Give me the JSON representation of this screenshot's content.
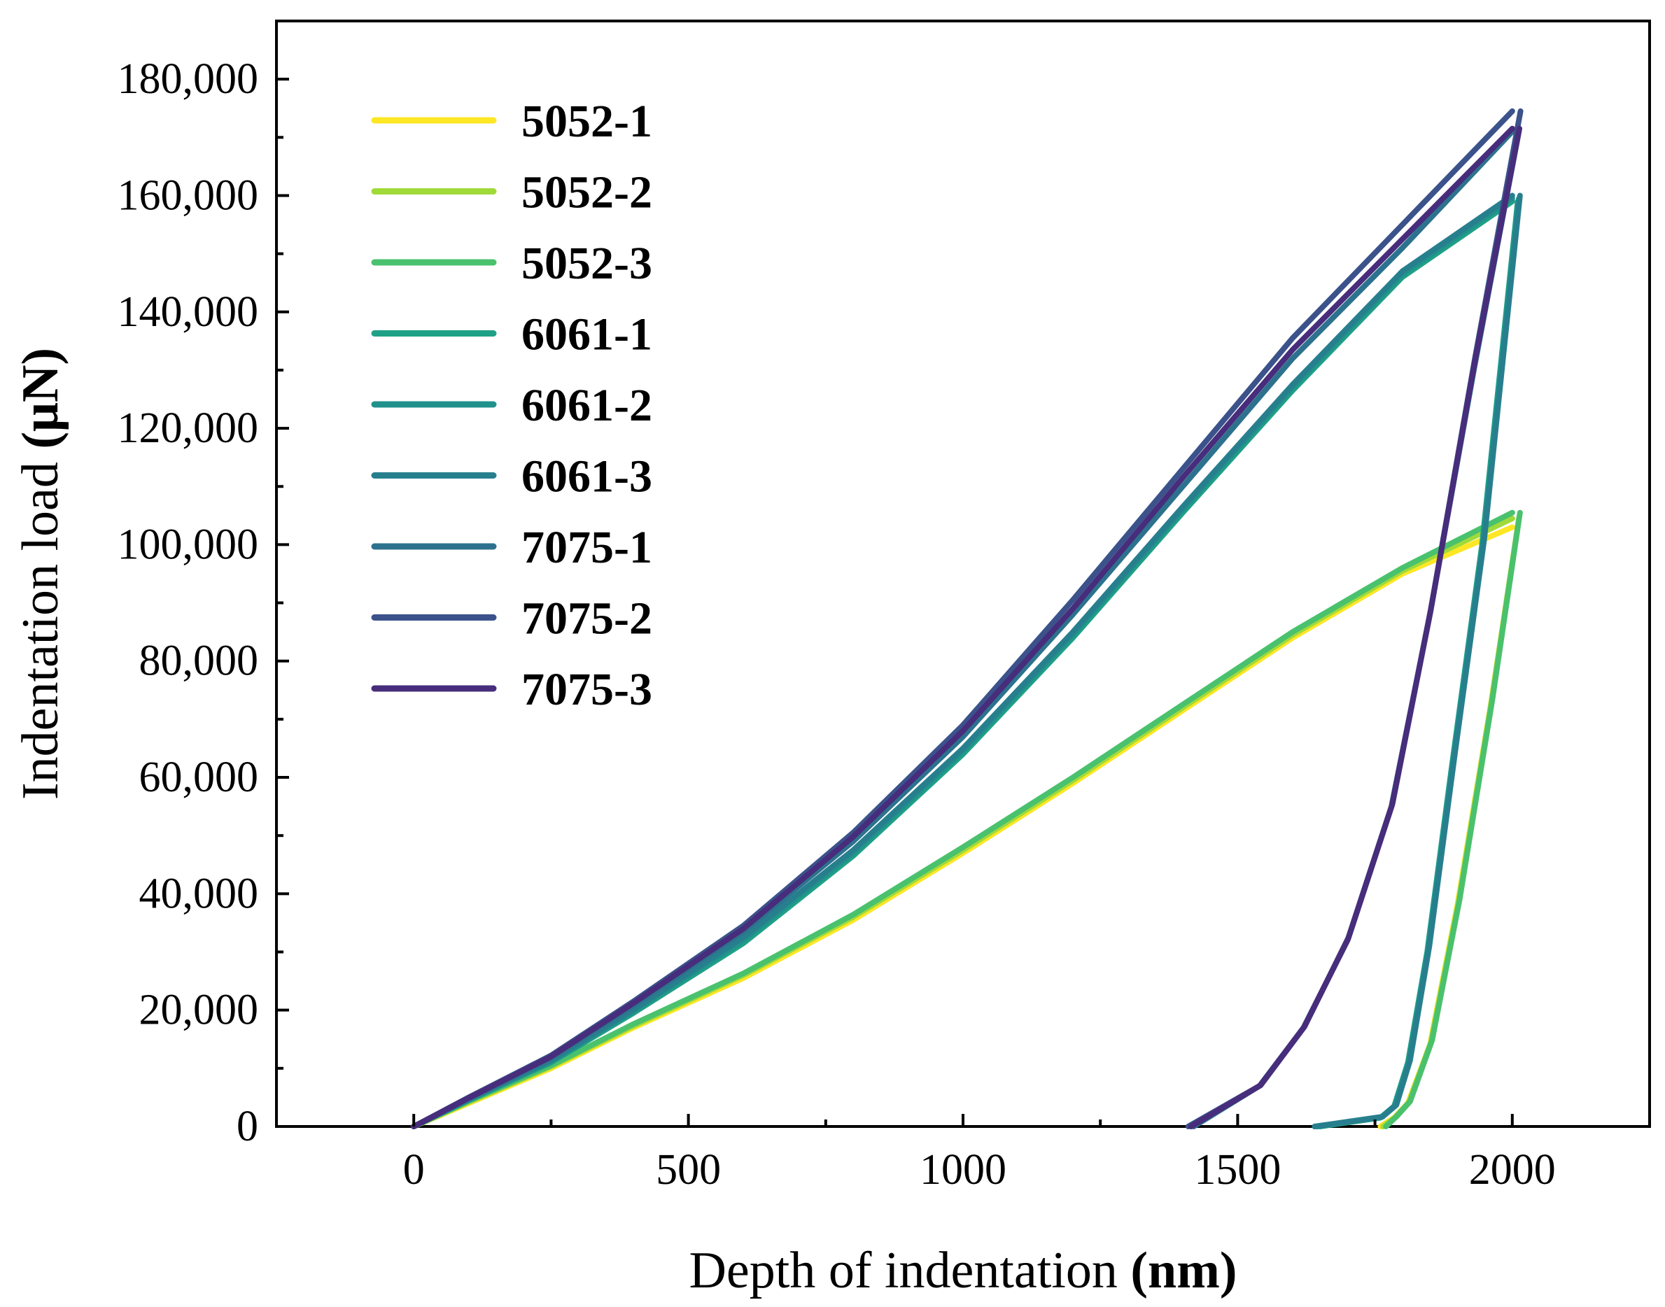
{
  "chart_data": {
    "type": "line",
    "xlabel": "Depth of indentation",
    "xlabel_unit": "(nm)",
    "ylabel": "Indentation load",
    "ylabel_unit": "(μN)",
    "xlim": [
      -250,
      2250
    ],
    "ylim": [
      0,
      190000
    ],
    "x_ticks": [
      0,
      500,
      1000,
      1500,
      2000
    ],
    "x_tick_labels": [
      "0",
      "500",
      "1000",
      "1500",
      "2000"
    ],
    "y_ticks": [
      0,
      20000,
      40000,
      60000,
      80000,
      100000,
      120000,
      140000,
      160000,
      180000
    ],
    "y_tick_labels": [
      "0",
      "20,000",
      "40,000",
      "60,000",
      "80,000",
      "100,000",
      "120,000",
      "140,000",
      "160,000",
      "180,000"
    ],
    "grid": false,
    "legend_position": "top-left",
    "series": [
      {
        "name": "5052-1",
        "color": "#fde725",
        "loading": [
          [
            0,
            0
          ],
          [
            100,
            4000
          ],
          [
            250,
            10000
          ],
          [
            400,
            17000
          ],
          [
            600,
            25500
          ],
          [
            800,
            35500
          ],
          [
            1000,
            47000
          ],
          [
            1200,
            59000
          ],
          [
            1400,
            71500
          ],
          [
            1600,
            84000
          ],
          [
            1800,
            95000
          ],
          [
            2000,
            103000
          ]
        ],
        "unloading": [
          [
            2010,
            103000
          ],
          [
            1960,
            72000
          ],
          [
            1900,
            38000
          ],
          [
            1850,
            14000
          ],
          [
            1810,
            4000
          ],
          [
            1785,
            1500
          ],
          [
            1760,
            0
          ]
        ]
      },
      {
        "name": "5052-2",
        "color": "#a0da39",
        "loading": [
          [
            0,
            0
          ],
          [
            100,
            4200
          ],
          [
            250,
            10300
          ],
          [
            400,
            17300
          ],
          [
            600,
            26000
          ],
          [
            800,
            36000
          ],
          [
            1000,
            47500
          ],
          [
            1200,
            59500
          ],
          [
            1400,
            72000
          ],
          [
            1600,
            84500
          ],
          [
            1800,
            95500
          ],
          [
            2000,
            104500
          ]
        ],
        "unloading": [
          [
            2012,
            104500
          ],
          [
            1962,
            73000
          ],
          [
            1902,
            38500
          ],
          [
            1852,
            14500
          ],
          [
            1812,
            4200
          ],
          [
            1787,
            1600
          ],
          [
            1765,
            0
          ]
        ]
      },
      {
        "name": "5052-3",
        "color": "#4ac16d",
        "loading": [
          [
            0,
            0
          ],
          [
            100,
            4400
          ],
          [
            250,
            10500
          ],
          [
            400,
            17600
          ],
          [
            600,
            26300
          ],
          [
            800,
            36400
          ],
          [
            1000,
            48000
          ],
          [
            1200,
            60000
          ],
          [
            1400,
            72500
          ],
          [
            1600,
            85000
          ],
          [
            1800,
            96000
          ],
          [
            2000,
            105500
          ]
        ],
        "unloading": [
          [
            2014,
            105500
          ],
          [
            1964,
            73500
          ],
          [
            1904,
            39000
          ],
          [
            1854,
            14800
          ],
          [
            1814,
            4300
          ],
          [
            1789,
            1700
          ],
          [
            1770,
            0
          ]
        ]
      },
      {
        "name": "6061-1",
        "color": "#1fa187",
        "loading": [
          [
            0,
            0
          ],
          [
            100,
            4500
          ],
          [
            250,
            11000
          ],
          [
            400,
            19500
          ],
          [
            600,
            31500
          ],
          [
            800,
            46500
          ],
          [
            1000,
            64000
          ],
          [
            1200,
            84000
          ],
          [
            1400,
            105500
          ],
          [
            1600,
            126500
          ],
          [
            1800,
            146000
          ],
          [
            2000,
            159000
          ]
        ],
        "unloading": [
          [
            2010,
            159000
          ],
          [
            1945,
            100000
          ],
          [
            1890,
            62000
          ],
          [
            1845,
            30000
          ],
          [
            1810,
            11000
          ],
          [
            1785,
            3500
          ],
          [
            1760,
            1500
          ],
          [
            1650,
            0
          ]
        ]
      },
      {
        "name": "6061-2",
        "color": "#21918c",
        "loading": [
          [
            0,
            0
          ],
          [
            100,
            4600
          ],
          [
            250,
            11200
          ],
          [
            400,
            19800
          ],
          [
            600,
            32000
          ],
          [
            800,
            47000
          ],
          [
            1000,
            64500
          ],
          [
            1200,
            84500
          ],
          [
            1400,
            106000
          ],
          [
            1600,
            127000
          ],
          [
            1800,
            146500
          ],
          [
            2000,
            159500
          ]
        ],
        "unloading": [
          [
            2012,
            159500
          ],
          [
            1947,
            100500
          ],
          [
            1892,
            62500
          ],
          [
            1847,
            30500
          ],
          [
            1812,
            11200
          ],
          [
            1787,
            3600
          ],
          [
            1762,
            1600
          ],
          [
            1645,
            0
          ]
        ]
      },
      {
        "name": "6061-3",
        "color": "#277f8e",
        "loading": [
          [
            0,
            0
          ],
          [
            100,
            4700
          ],
          [
            250,
            11400
          ],
          [
            400,
            20100
          ],
          [
            600,
            32500
          ],
          [
            800,
            47500
          ],
          [
            1000,
            65000
          ],
          [
            1200,
            85000
          ],
          [
            1400,
            106500
          ],
          [
            1600,
            127500
          ],
          [
            1800,
            147000
          ],
          [
            2000,
            160000
          ]
        ],
        "unloading": [
          [
            2014,
            160000
          ],
          [
            1949,
            101000
          ],
          [
            1894,
            63000
          ],
          [
            1849,
            31000
          ],
          [
            1814,
            11400
          ],
          [
            1789,
            3700
          ],
          [
            1764,
            1700
          ],
          [
            1640,
            0
          ]
        ]
      },
      {
        "name": "7075-1",
        "color": "#2c728e",
        "loading": [
          [
            0,
            0
          ],
          [
            100,
            4800
          ],
          [
            250,
            11800
          ],
          [
            400,
            20800
          ],
          [
            600,
            33500
          ],
          [
            800,
            49000
          ],
          [
            1000,
            67000
          ],
          [
            1200,
            88000
          ],
          [
            1400,
            110000
          ],
          [
            1600,
            132000
          ],
          [
            1800,
            151000
          ],
          [
            2000,
            171000
          ]
        ],
        "unloading": [
          [
            2012,
            171000
          ],
          [
            1930,
            130000
          ],
          [
            1850,
            88000
          ],
          [
            1780,
            55000
          ],
          [
            1700,
            32000
          ],
          [
            1620,
            17000
          ],
          [
            1540,
            7000
          ],
          [
            1420,
            0
          ]
        ]
      },
      {
        "name": "7075-2",
        "color": "#3b528b",
        "loading": [
          [
            0,
            0
          ],
          [
            100,
            5000
          ],
          [
            250,
            12200
          ],
          [
            400,
            21500
          ],
          [
            600,
            34500
          ],
          [
            800,
            50500
          ],
          [
            1000,
            69000
          ],
          [
            1200,
            90500
          ],
          [
            1400,
            113000
          ],
          [
            1600,
            135500
          ],
          [
            1800,
            155000
          ],
          [
            2000,
            174500
          ]
        ],
        "unloading": [
          [
            2015,
            174500
          ],
          [
            1932,
            132000
          ],
          [
            1852,
            89000
          ],
          [
            1782,
            55500
          ],
          [
            1702,
            32500
          ],
          [
            1622,
            17200
          ],
          [
            1542,
            7100
          ],
          [
            1410,
            0
          ]
        ]
      },
      {
        "name": "7075-3",
        "color": "#472d7b",
        "loading": [
          [
            0,
            0
          ],
          [
            100,
            4900
          ],
          [
            250,
            12000
          ],
          [
            400,
            21200
          ],
          [
            600,
            34000
          ],
          [
            800,
            49800
          ],
          [
            1000,
            68000
          ],
          [
            1200,
            89000
          ],
          [
            1400,
            111500
          ],
          [
            1600,
            133500
          ],
          [
            1800,
            152500
          ],
          [
            2000,
            171500
          ]
        ],
        "unloading": [
          [
            2013,
            171500
          ],
          [
            1931,
            131000
          ],
          [
            1851,
            88500
          ],
          [
            1781,
            55200
          ],
          [
            1701,
            32200
          ],
          [
            1621,
            17100
          ],
          [
            1541,
            7050
          ],
          [
            1415,
            0
          ]
        ]
      }
    ]
  }
}
